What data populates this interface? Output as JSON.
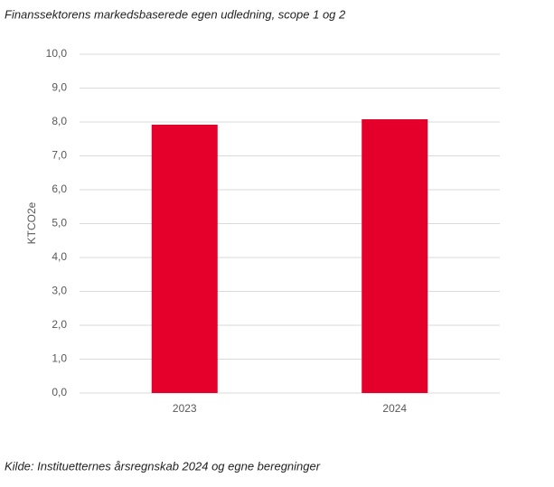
{
  "chart_data": {
    "type": "bar",
    "title": "Finanssektorens markedsbaserede egen udledning, scope 1 og 2",
    "y_label": "KTCO2e",
    "source": "Kilde: Instituetternes årsregnskab 2024 og egne beregninger",
    "categories": [
      "2023",
      "2024"
    ],
    "values": [
      7.92,
      8.08
    ],
    "color": "#e4002b",
    "ylim": [
      0,
      10
    ],
    "yticks": [
      {
        "value": 0,
        "label": "0,0"
      },
      {
        "value": 1,
        "label": "1,0"
      },
      {
        "value": 2,
        "label": "2,0"
      },
      {
        "value": 3,
        "label": "3,0"
      },
      {
        "value": 4,
        "label": "4,0"
      },
      {
        "value": 5,
        "label": "5,0"
      },
      {
        "value": 6,
        "label": "6,0"
      },
      {
        "value": 7,
        "label": "7,0"
      },
      {
        "value": 8,
        "label": "8,0"
      },
      {
        "value": 9,
        "label": "9,0"
      },
      {
        "value": 10,
        "label": "10,0"
      }
    ],
    "grid": true
  }
}
